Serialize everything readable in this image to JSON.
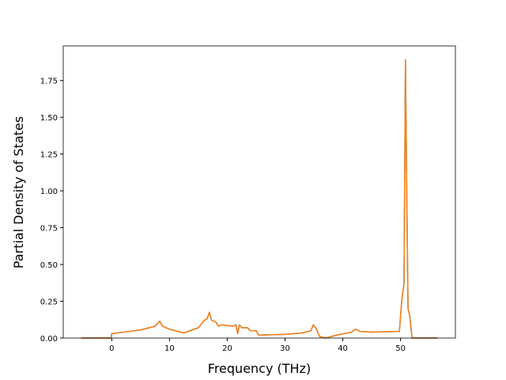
{
  "chart_data": {
    "type": "line",
    "xlabel": "Frequency (THz)",
    "ylabel": "Partial Density of States",
    "x": [
      -5.3,
      -0.1,
      0,
      2,
      5,
      7.5,
      8.3,
      8.8,
      10,
      12.5,
      15,
      16,
      16.5,
      16.9,
      17.3,
      18,
      18.5,
      19,
      21,
      21.5,
      21.8,
      22.1,
      22.5,
      23.5,
      24,
      25,
      25.4,
      30,
      33,
      34.5,
      34.9,
      35.3,
      36,
      37,
      39,
      41.5,
      42.2,
      43,
      45,
      49.8,
      50.2,
      50.6,
      50.85,
      51.1,
      51.3,
      51.6,
      52,
      56.4
    ],
    "series": [
      {
        "color": "#1f77b4",
        "values": [
          0,
          0,
          0.03,
          0.04,
          0.055,
          0.08,
          0.115,
          0.08,
          0.06,
          0.035,
          0.07,
          0.12,
          0.13,
          0.175,
          0.12,
          0.11,
          0.08,
          0.09,
          0.08,
          0.09,
          0.03,
          0.09,
          0.07,
          0.07,
          0.05,
          0.05,
          0.02,
          0.025,
          0.035,
          0.05,
          0.09,
          0.07,
          0.01,
          0,
          0.02,
          0.04,
          0.06,
          0.045,
          0.04,
          0.045,
          0.25,
          0.37,
          1.89,
          0.9,
          0.2,
          0.15,
          0,
          0
        ]
      },
      {
        "color": "#ff7f0e",
        "values": [
          0,
          0,
          0.03,
          0.04,
          0.055,
          0.08,
          0.115,
          0.08,
          0.06,
          0.035,
          0.07,
          0.12,
          0.13,
          0.175,
          0.12,
          0.11,
          0.08,
          0.09,
          0.08,
          0.09,
          0.03,
          0.09,
          0.07,
          0.07,
          0.05,
          0.05,
          0.02,
          0.025,
          0.035,
          0.05,
          0.09,
          0.07,
          0.01,
          0,
          0.02,
          0.04,
          0.06,
          0.045,
          0.04,
          0.045,
          0.25,
          0.37,
          1.89,
          0.9,
          0.2,
          0.15,
          0,
          0
        ]
      }
    ],
    "xlim": [
      -8.4,
      59.5
    ],
    "xticks": [
      0,
      10,
      20,
      30,
      40,
      50
    ],
    "ylim": [
      0,
      1.985
    ],
    "yticks": [
      {
        "value": 0,
        "label": "0.00"
      },
      {
        "value": 0.25,
        "label": "0.25"
      },
      {
        "value": 0.5,
        "label": "0.50"
      },
      {
        "value": 0.75,
        "label": "0.75"
      },
      {
        "value": 1.0,
        "label": "1.00"
      },
      {
        "value": 1.25,
        "label": "1.25"
      },
      {
        "value": 1.5,
        "label": "1.50"
      },
      {
        "value": 1.75,
        "label": "1.75"
      }
    ],
    "grid": false
  }
}
